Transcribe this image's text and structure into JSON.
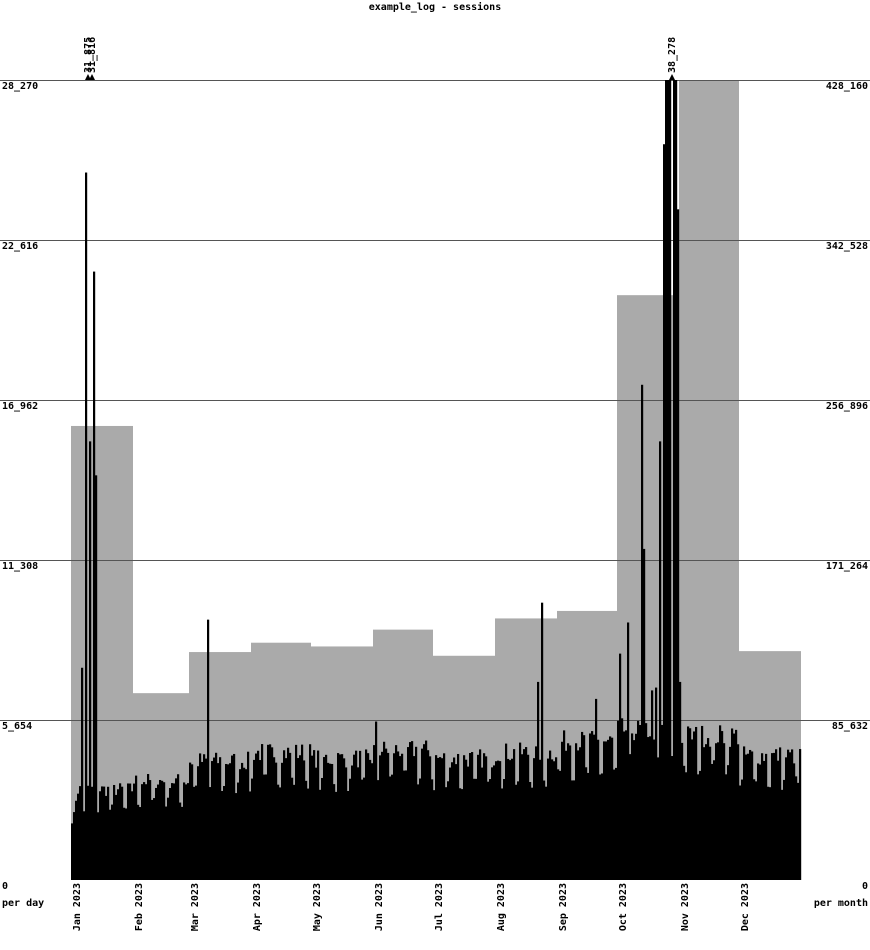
{
  "chart_data": {
    "type": "bar",
    "title": "example_log - sessions",
    "left_axis_label": "per day",
    "right_axis_label": "per month",
    "left_ticks": [
      "0",
      "5_654",
      "11_308",
      "16_962",
      "22_616",
      "28_270"
    ],
    "right_ticks": [
      "0",
      "85_632",
      "171_264",
      "256_896",
      "342_528",
      "428_160"
    ],
    "left_ylim": [
      0,
      28270
    ],
    "right_ylim": [
      0,
      428160
    ],
    "x_labels": [
      "Jan 2023",
      "Feb 2023",
      "Mar 2023",
      "Apr 2023",
      "May 2023",
      "Jun 2023",
      "Jul 2023",
      "Aug 2023",
      "Sep 2023",
      "Oct 2023",
      "Nov 2023",
      "Dec 2023"
    ],
    "grid": true,
    "series": [
      {
        "name": "per month",
        "color": "#aaaaaa",
        "categories": [
          "Jan 2023",
          "Feb 2023",
          "Mar 2023",
          "Apr 2023",
          "May 2023",
          "Jun 2023",
          "Jul 2023",
          "Aug 2023",
          "Sep 2023",
          "Oct 2023",
          "Nov 2023",
          "Dec 2023"
        ],
        "values": [
          243000,
          100000,
          122000,
          127000,
          125000,
          134000,
          120000,
          140000,
          144000,
          313000,
          428160,
          122500
        ]
      },
      {
        "name": "per day",
        "color": "#000000",
        "note_overflow_labels": [
          "31_875",
          "31_816",
          "38_278"
        ],
        "annotated_peaks": [
          {
            "day_index": 8,
            "value": 31875
          },
          {
            "day_index": 10,
            "value": 31816
          },
          {
            "day_index": 300,
            "value": 38278
          }
        ],
        "spikes": [
          {
            "day_index": 5,
            "value": 7500
          },
          {
            "day_index": 7,
            "value": 25000
          },
          {
            "day_index": 9,
            "value": 15500
          },
          {
            "day_index": 11,
            "value": 21500
          },
          {
            "day_index": 12,
            "value": 14300
          },
          {
            "day_index": 68,
            "value": 9200
          },
          {
            "day_index": 152,
            "value": 5600
          },
          {
            "day_index": 235,
            "value": 9800
          },
          {
            "day_index": 233,
            "value": 7000
          },
          {
            "day_index": 262,
            "value": 6400
          },
          {
            "day_index": 274,
            "value": 8000
          },
          {
            "day_index": 278,
            "value": 9100
          },
          {
            "day_index": 285,
            "value": 17500
          },
          {
            "day_index": 286,
            "value": 11700
          },
          {
            "day_index": 290,
            "value": 6700
          },
          {
            "day_index": 292,
            "value": 6800
          },
          {
            "day_index": 294,
            "value": 15500
          },
          {
            "day_index": 296,
            "value": 26000
          },
          {
            "day_index": 297,
            "value": 31000
          },
          {
            "day_index": 298,
            "value": 38278
          },
          {
            "day_index": 299,
            "value": 38278
          },
          {
            "day_index": 301,
            "value": 38278
          },
          {
            "day_index": 302,
            "value": 35000
          },
          {
            "day_index": 303,
            "value": 23700
          },
          {
            "day_index": 304,
            "value": 7000
          }
        ],
        "monthly_base_levels": [
          3200,
          3500,
          4200,
          4500,
          4300,
          4600,
          4300,
          4500,
          4900,
          5300,
          5100,
          4400
        ]
      }
    ]
  }
}
